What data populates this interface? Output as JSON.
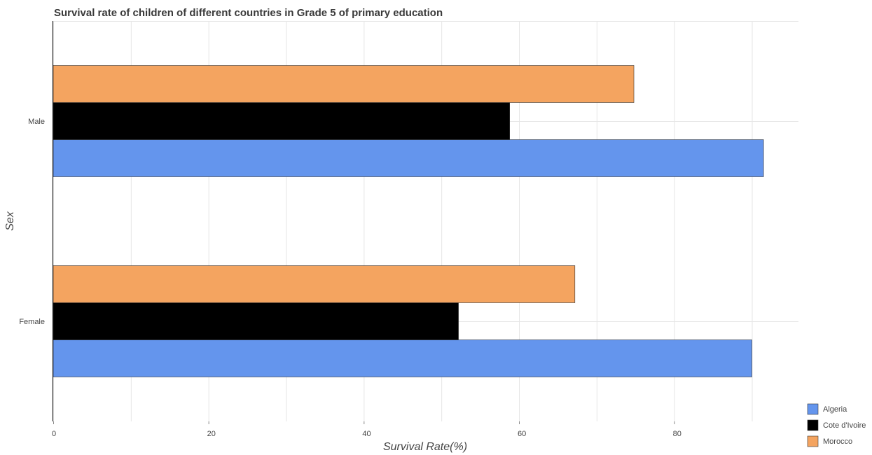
{
  "chart_data": {
    "type": "bar",
    "orientation": "horizontal",
    "title": "Survival rate of children of different countries in Grade 5 of primary education",
    "xlabel": "Survival Rate(%)",
    "ylabel": "Sex",
    "xlim": [
      0,
      96
    ],
    "xticks": [
      0,
      20,
      40,
      60,
      80
    ],
    "xtick_labels": [
      "0",
      "20",
      "40",
      "60",
      "80"
    ],
    "categories": [
      "Male",
      "Female"
    ],
    "series": [
      {
        "name": "Algeria",
        "color": "#6495ed",
        "values": [
          91.5,
          90.0
        ]
      },
      {
        "name": "Cote d'Ivoire",
        "color": "#000000",
        "values": [
          58.8,
          52.2
        ]
      },
      {
        "name": "Morocco",
        "color": "#f4a460",
        "values": [
          74.8,
          67.2
        ]
      }
    ],
    "grid": true,
    "legend_position": "bottom-right"
  }
}
